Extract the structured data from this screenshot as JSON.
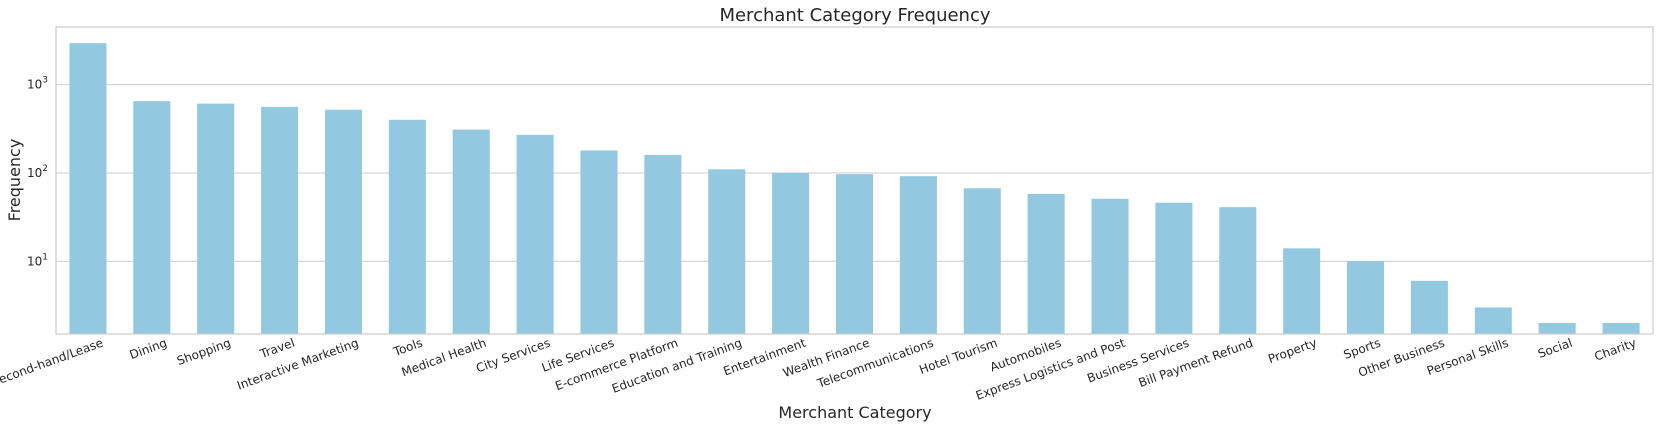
{
  "chart_data": {
    "type": "bar",
    "title": "Merchant Category Frequency",
    "xlabel": "Merchant Category",
    "ylabel": "Frequency",
    "yscale": "log",
    "ylim": [
      1.5,
      4500
    ],
    "yticks": [
      {
        "value": 10,
        "base": "10",
        "exp": "1"
      },
      {
        "value": 100,
        "base": "10",
        "exp": "2"
      },
      {
        "value": 1000,
        "base": "10",
        "exp": "3"
      }
    ],
    "grid": true,
    "bar_color": "#92c9e0",
    "categories": [
      "Second-hand/Lease",
      "Dining",
      "Shopping",
      "Travel",
      "Interactive Marketing",
      "Tools",
      "Medical Health",
      "City Services",
      "Life Services",
      "E-commerce Platform",
      "Education and Training",
      "Entertainment",
      "Wealth Finance",
      "Telecommunications",
      "Hotel Tourism",
      "Automobiles",
      "Express Logistics and Post",
      "Business Services",
      "Bill Payment Refund",
      "Property",
      "Sports",
      "Other Business",
      "Personal Skills",
      "Social",
      "Charity"
    ],
    "values": [
      2950,
      650,
      610,
      560,
      520,
      400,
      310,
      270,
      180,
      160,
      110,
      100,
      97,
      92,
      67,
      58,
      51,
      46,
      41,
      14,
      10,
      6,
      3,
      2,
      2
    ]
  }
}
